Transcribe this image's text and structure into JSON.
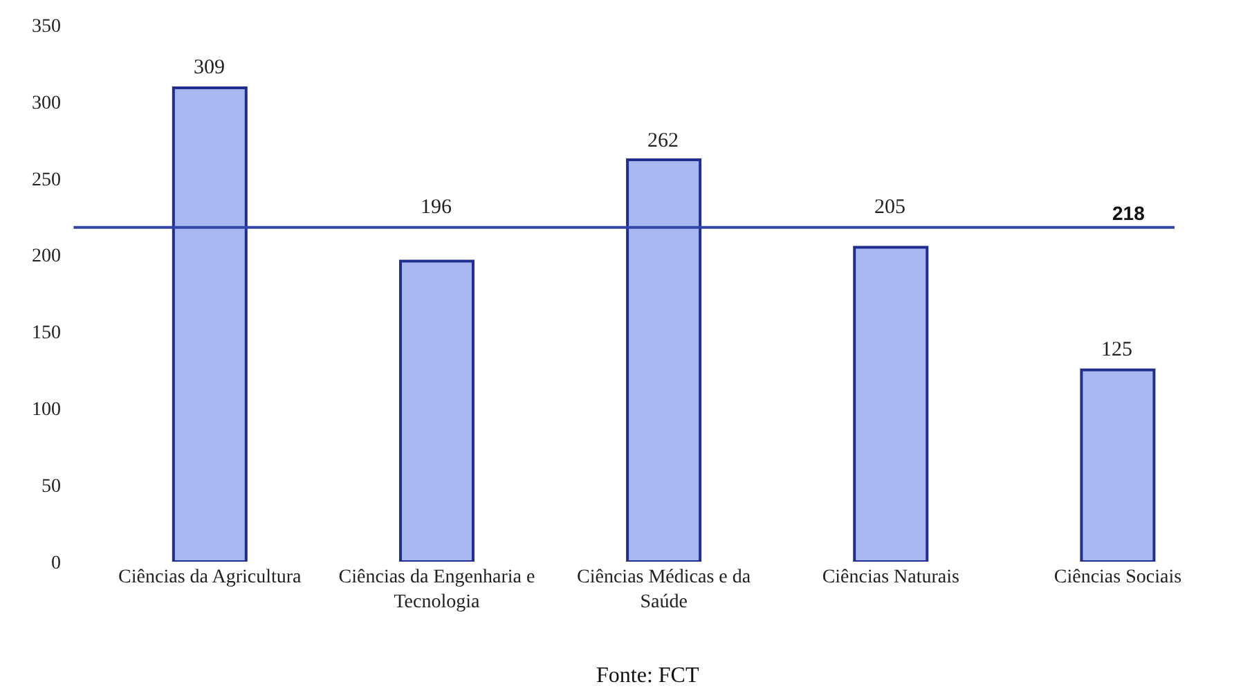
{
  "chart_data": {
    "type": "bar",
    "categories": [
      "Ciências da Agricultura",
      "Ciências da Engenharia e Tecnologia",
      "Ciências Médicas e da Saúde",
      "Ciências Naturais",
      "Ciências Sociais"
    ],
    "values": [
      309,
      196,
      262,
      205,
      125
    ],
    "color": "#aab8f2",
    "data_labels": true,
    "ylim": [
      0,
      350
    ],
    "yticks": [
      0,
      50,
      100,
      150,
      200,
      250,
      300,
      350
    ],
    "ref_lines": [
      {
        "axis": "y",
        "value": 218,
        "label": "218",
        "color": "#2f45a8"
      }
    ],
    "annotations": [
      "Fonte: FCT"
    ]
  }
}
